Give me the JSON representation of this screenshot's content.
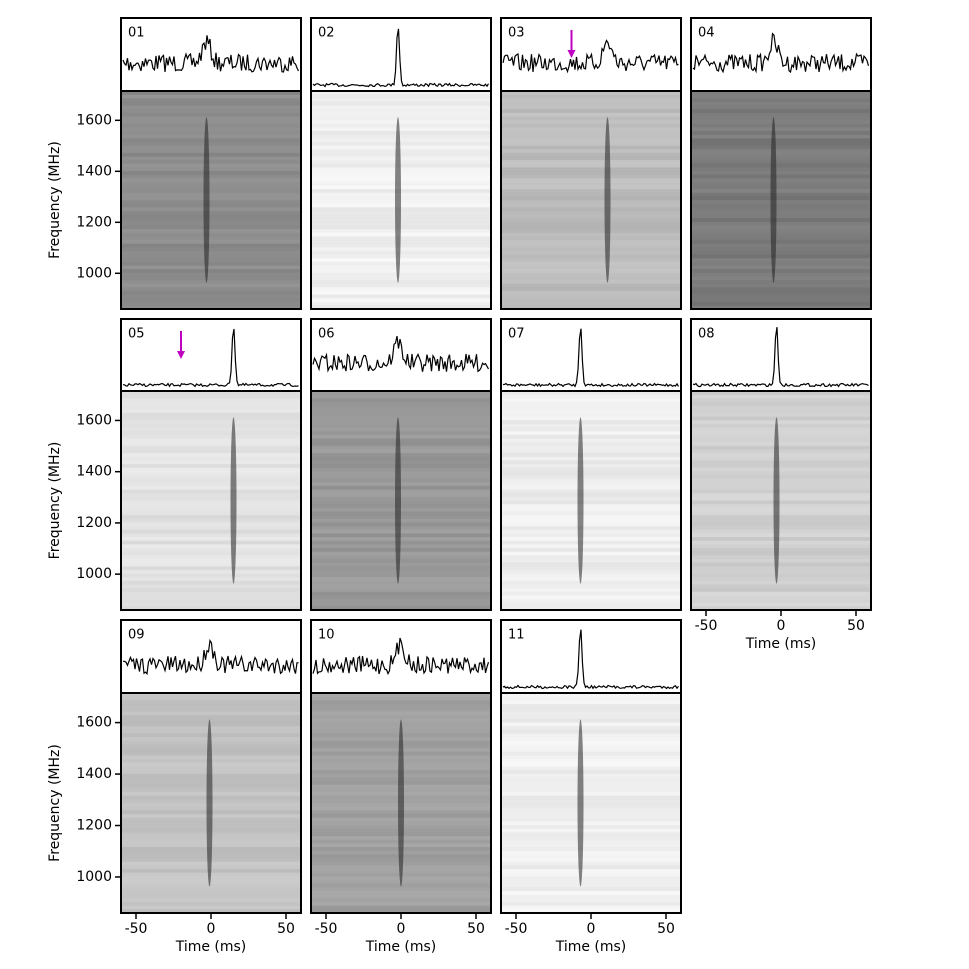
{
  "chart_data": {
    "type": "waterfall-grid",
    "xlabel": "Time (ms)",
    "ylabel": "Frequency (MHz)",
    "xlim": [
      -60,
      60
    ],
    "xticks": [
      -50,
      0,
      50
    ],
    "ylim": [
      860,
      1715
    ],
    "yticks": [
      1000,
      1200,
      1400,
      1600
    ],
    "arrow_color": "#c000c0",
    "panels": [
      {
        "label": "01",
        "burst_ms": -3,
        "shade": "#8c8c8c"
      },
      {
        "label": "02",
        "burst_ms": -2,
        "shade": "#efefef"
      },
      {
        "label": "03",
        "burst_ms": 11,
        "shade": "#bcbcbc",
        "arrow_ms": -13
      },
      {
        "label": "04",
        "burst_ms": -5,
        "shade": "#7a7a7a"
      },
      {
        "label": "05",
        "burst_ms": 15,
        "shade": "#e2e2e2",
        "arrow_ms": -20
      },
      {
        "label": "06",
        "burst_ms": -2,
        "shade": "#999999"
      },
      {
        "label": "07",
        "burst_ms": -7,
        "shade": "#ededed"
      },
      {
        "label": "08",
        "burst_ms": -3,
        "shade": "#d0d0d0"
      },
      {
        "label": "09",
        "burst_ms": -1,
        "shade": "#c2c2c2"
      },
      {
        "label": "10",
        "burst_ms": 0,
        "shade": "#a0a0a0"
      },
      {
        "label": "11",
        "burst_ms": -7,
        "shade": "#efefef"
      }
    ]
  }
}
